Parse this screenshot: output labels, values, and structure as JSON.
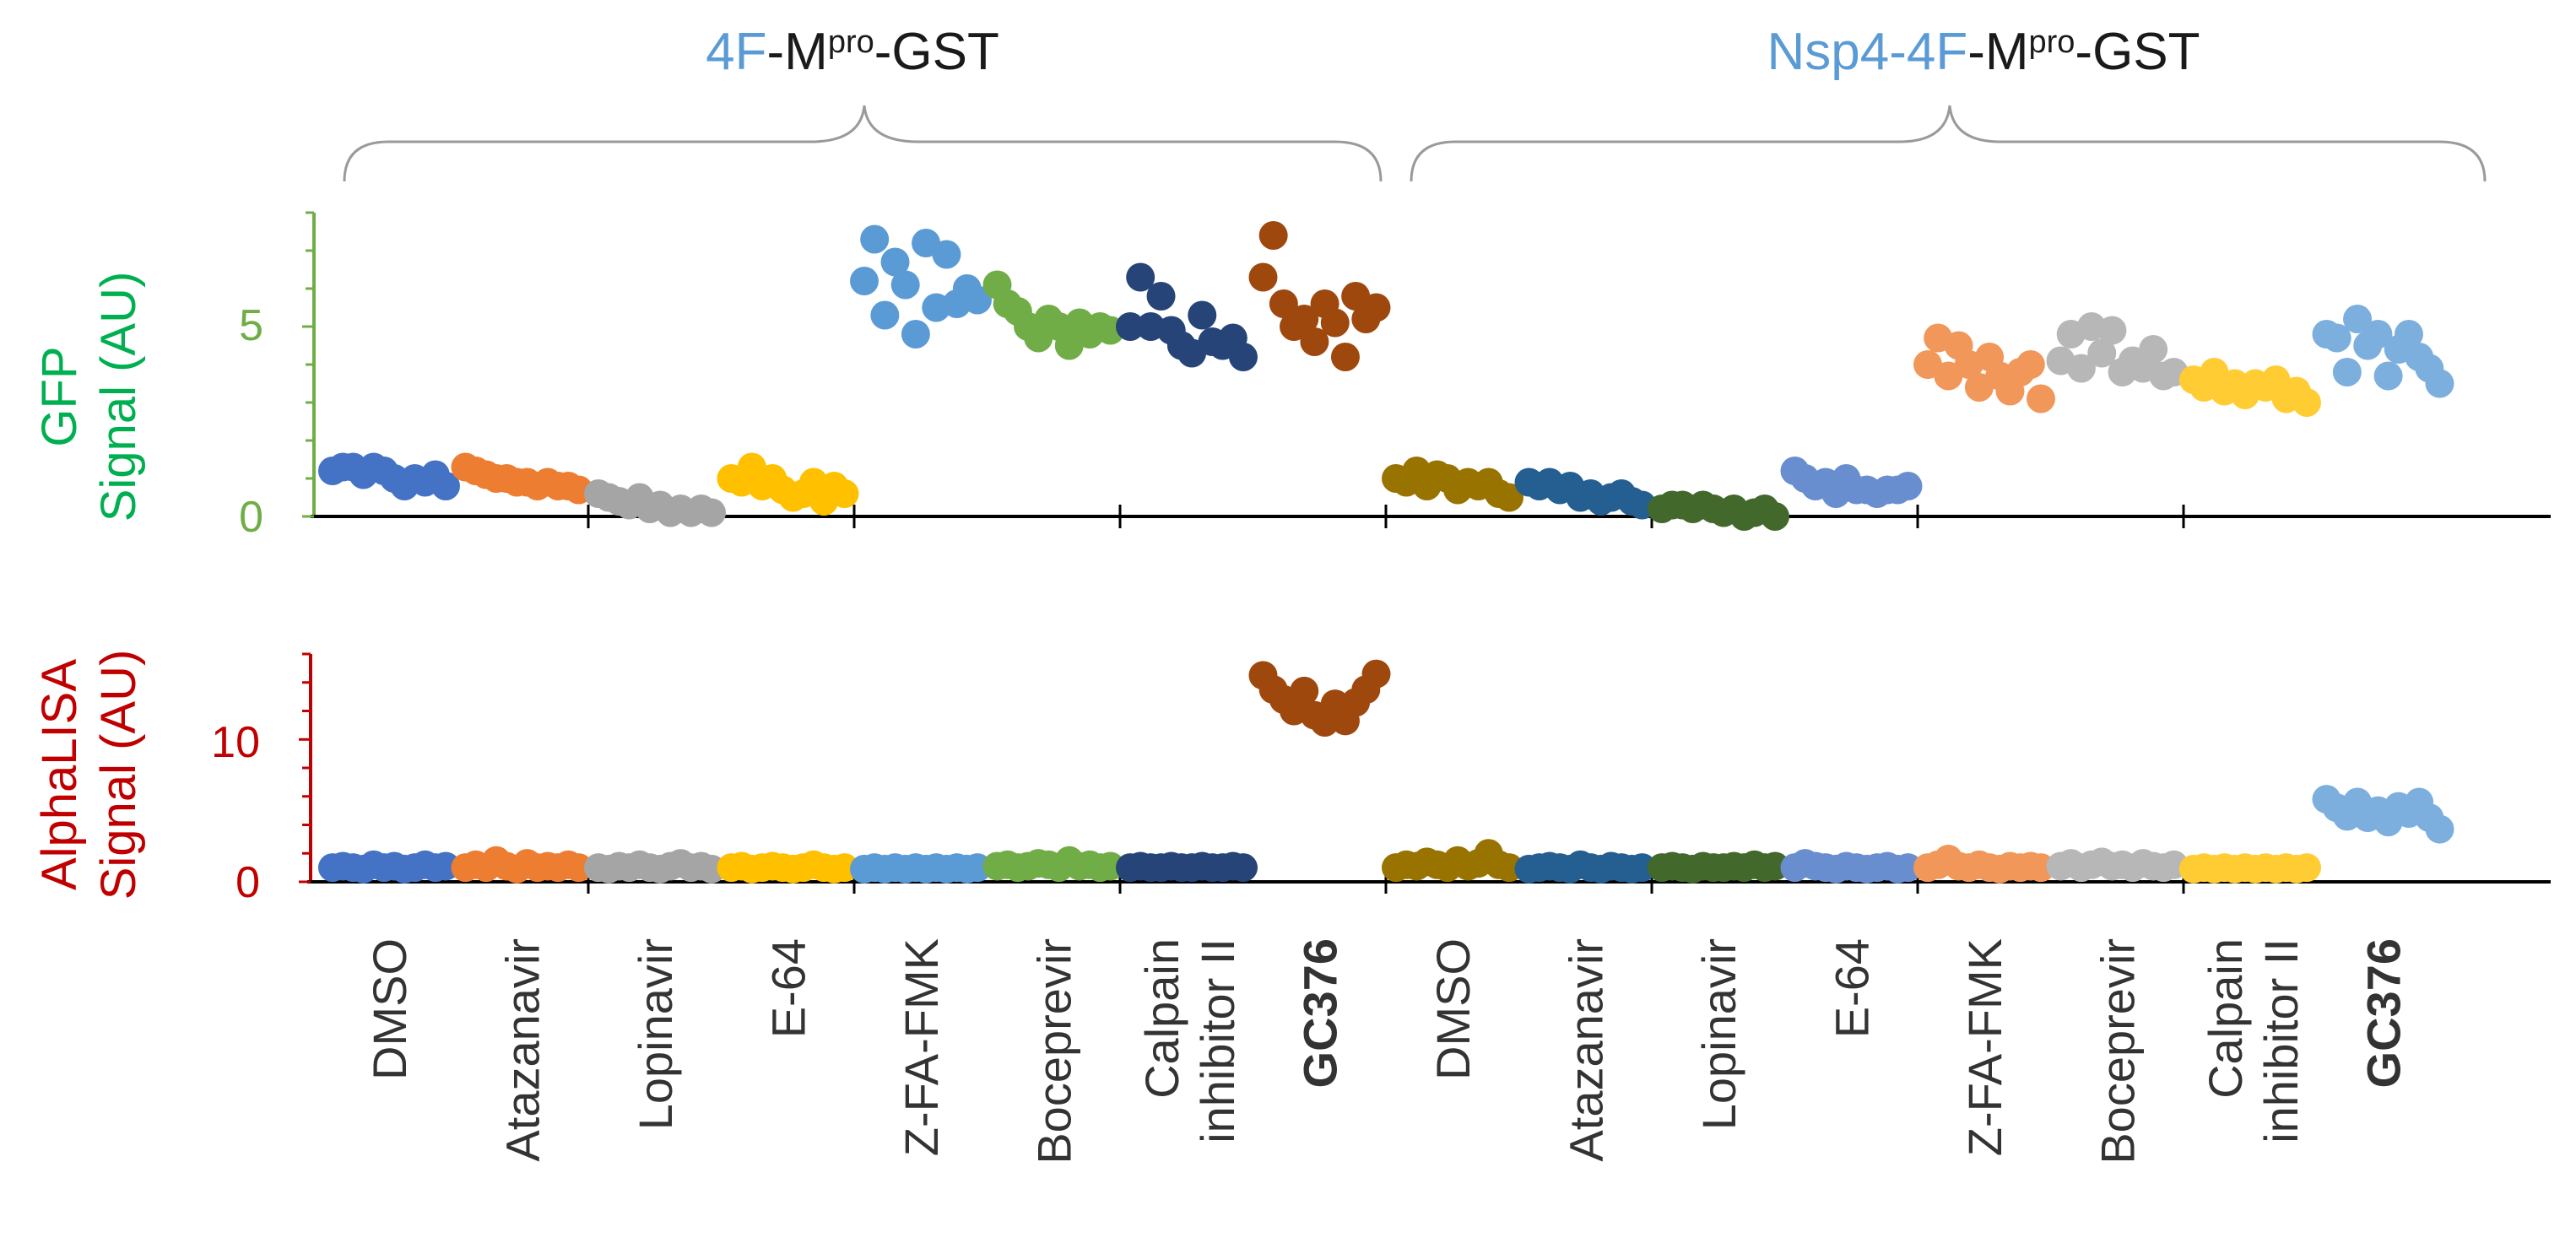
{
  "groups": [
    {
      "name_colored": "4F",
      "name_rest": "-M",
      "sup": "pro",
      "tail": "-GST",
      "colored_color": "#5b9bd5"
    },
    {
      "name_colored": "Nsp4-4F",
      "name_rest": "-M",
      "sup": "pro",
      "tail": "-GST",
      "colored_color": "#5b9bd5"
    }
  ],
  "panels": {
    "gfp": {
      "ylabel_line1": "GFP",
      "ylabel_line2": "Signal (AU)",
      "color": "#70ad47",
      "ticks": [
        "0",
        "5"
      ]
    },
    "alpha": {
      "ylabel_line1": "AlphaLISA",
      "ylabel_line2": "Signal (AU)",
      "color": "#c00000",
      "ticks": [
        "0",
        "10"
      ]
    }
  },
  "compounds": [
    {
      "line1": "DMSO",
      "line2": "",
      "bold": false
    },
    {
      "line1": "Atazanavir",
      "line2": "",
      "bold": false
    },
    {
      "line1": "Lopinavir",
      "line2": "",
      "bold": false
    },
    {
      "line1": "E-64",
      "line2": "",
      "bold": false
    },
    {
      "line1": "Z-FA-FMK",
      "line2": "",
      "bold": false
    },
    {
      "line1": "Boceprevir",
      "line2": "",
      "bold": false
    },
    {
      "line1": "Calpain",
      "line2": "inhibitor II",
      "bold": false
    },
    {
      "line1": "GC376",
      "line2": "",
      "bold": true
    },
    {
      "line1": "DMSO",
      "line2": "",
      "bold": false
    },
    {
      "line1": "Atazanavir",
      "line2": "",
      "bold": false
    },
    {
      "line1": "Lopinavir",
      "line2": "",
      "bold": false
    },
    {
      "line1": "E-64",
      "line2": "",
      "bold": false
    },
    {
      "line1": "Z-FA-FMK",
      "line2": "",
      "bold": false
    },
    {
      "line1": "Boceprevir",
      "line2": "",
      "bold": false
    },
    {
      "line1": "Calpain",
      "line2": "inhibitor II",
      "bold": false
    },
    {
      "line1": "GC376",
      "line2": "",
      "bold": true
    }
  ],
  "chart_data": [
    {
      "type": "scatter",
      "ylabel": "GFP Signal (AU)",
      "ylim": [
        0,
        8
      ],
      "yticks": [
        0,
        5
      ],
      "categories": [
        "DMSO",
        "Atazanavir",
        "Lopinavir",
        "E-64",
        "Z-FA-FMK",
        "Boceprevir",
        "Calpain inhibitor II",
        "GC376",
        "DMSO",
        "Atazanavir",
        "Lopinavir",
        "E-64",
        "Z-FA-FMK",
        "Boceprevir",
        "Calpain inhibitor II",
        "GC376"
      ],
      "series": [
        {
          "color": "#4472c4",
          "values": [
            1.2,
            1.3,
            1.3,
            1.1,
            1.3,
            1.2,
            1.0,
            0.8,
            1.0,
            0.9,
            1.1,
            0.8
          ]
        },
        {
          "color": "#ed7d31",
          "values": [
            1.3,
            1.2,
            1.1,
            1.0,
            1.0,
            0.9,
            0.9,
            0.8,
            0.9,
            0.8,
            0.8,
            0.7
          ]
        },
        {
          "color": "#a5a5a5",
          "values": [
            0.6,
            0.5,
            0.4,
            0.3,
            0.5,
            0.2,
            0.3,
            0.1,
            0.2,
            0.1,
            0.2,
            0.1
          ]
        },
        {
          "color": "#ffc000",
          "values": [
            1.0,
            0.9,
            1.3,
            0.8,
            1.0,
            0.7,
            0.5,
            0.6,
            0.9,
            0.4,
            0.8,
            0.6
          ]
        },
        {
          "color": "#5b9bd5",
          "values": [
            6.2,
            7.3,
            5.3,
            6.7,
            6.1,
            4.8,
            7.2,
            5.5,
            6.9,
            5.6,
            6.0,
            5.7
          ]
        },
        {
          "color": "#70ad47",
          "values": [
            6.1,
            5.6,
            5.4,
            5.0,
            4.7,
            5.2,
            5.0,
            4.5,
            5.1,
            4.8,
            5.0,
            4.9
          ]
        },
        {
          "color": "#264478",
          "values": [
            5.0,
            6.3,
            5.0,
            5.8,
            4.9,
            4.5,
            4.3,
            5.3,
            4.6,
            4.5,
            4.7,
            4.2
          ]
        },
        {
          "color": "#9e480e",
          "values": [
            6.3,
            7.4,
            5.6,
            5.0,
            5.2,
            4.6,
            5.6,
            5.1,
            4.2,
            5.8,
            5.2,
            5.5
          ]
        },
        {
          "color": "#997300",
          "values": [
            1.0,
            0.9,
            1.2,
            0.8,
            1.1,
            1.0,
            0.7,
            0.9,
            0.8,
            0.9,
            0.6,
            0.5
          ]
        },
        {
          "color": "#255e91",
          "values": [
            0.9,
            0.8,
            0.9,
            0.7,
            0.8,
            0.5,
            0.6,
            0.4,
            0.5,
            0.6,
            0.4,
            0.3
          ]
        },
        {
          "color": "#43682b",
          "values": [
            0.2,
            0.3,
            0.3,
            0.2,
            0.3,
            0.2,
            0.1,
            0.2,
            0.0,
            0.1,
            0.2,
            0.0
          ]
        },
        {
          "color": "#698ed0",
          "values": [
            1.2,
            1.0,
            0.8,
            0.9,
            0.6,
            1.0,
            0.7,
            0.7,
            0.6,
            0.7,
            0.7,
            0.8
          ]
        },
        {
          "color": "#f1975a",
          "values": [
            4.0,
            4.7,
            3.7,
            4.5,
            4.0,
            3.4,
            4.2,
            3.7,
            3.3,
            3.8,
            4.0,
            3.1
          ]
        },
        {
          "color": "#b7b7b7",
          "values": [
            4.1,
            4.8,
            3.9,
            5.0,
            4.3,
            4.9,
            3.8,
            4.1,
            3.9,
            4.4,
            3.7,
            3.8
          ]
        },
        {
          "color": "#ffcd33",
          "values": [
            3.6,
            3.4,
            3.8,
            3.3,
            3.5,
            3.2,
            3.5,
            3.4,
            3.6,
            3.1,
            3.3,
            3.0
          ]
        },
        {
          "color": "#7cafdd",
          "values": [
            4.8,
            4.7,
            3.8,
            5.2,
            4.5,
            4.8,
            3.7,
            4.4,
            4.8,
            4.2,
            3.9,
            3.5
          ]
        }
      ]
    },
    {
      "type": "scatter",
      "ylabel": "AlphaLISA Signal (AU)",
      "ylim": [
        0,
        16
      ],
      "yticks": [
        0,
        10
      ],
      "categories": [
        "DMSO",
        "Atazanavir",
        "Lopinavir",
        "E-64",
        "Z-FA-FMK",
        "Boceprevir",
        "Calpain inhibitor II",
        "GC376",
        "DMSO",
        "Atazanavir",
        "Lopinavir",
        "E-64",
        "Z-FA-FMK",
        "Boceprevir",
        "Calpain inhibitor II",
        "GC376"
      ],
      "series": [
        {
          "color": "#4472c4",
          "values": [
            1.0,
            1.1,
            1.0,
            0.9,
            1.2,
            1.0,
            1.1,
            0.9,
            1.0,
            1.2,
            1.0,
            1.1
          ]
        },
        {
          "color": "#ed7d31",
          "values": [
            1.0,
            1.2,
            1.0,
            1.5,
            1.1,
            0.9,
            1.3,
            1.0,
            1.1,
            1.0,
            1.2,
            1.0
          ]
        },
        {
          "color": "#a5a5a5",
          "values": [
            1.0,
            0.9,
            1.1,
            1.0,
            1.2,
            1.0,
            0.9,
            1.1,
            1.3,
            1.0,
            1.1,
            0.9
          ]
        },
        {
          "color": "#ffc000",
          "values": [
            1.0,
            1.1,
            0.9,
            1.0,
            1.1,
            1.0,
            0.9,
            1.0,
            1.2,
            1.0,
            0.9,
            1.0
          ]
        },
        {
          "color": "#5b9bd5",
          "values": [
            0.9,
            1.0,
            0.9,
            1.0,
            0.9,
            1.0,
            0.9,
            1.0,
            0.9,
            1.0,
            0.9,
            1.0
          ]
        },
        {
          "color": "#70ad47",
          "values": [
            1.1,
            1.2,
            1.0,
            1.1,
            1.3,
            1.2,
            1.0,
            1.5,
            1.1,
            1.2,
            1.0,
            1.1
          ]
        },
        {
          "color": "#264478",
          "values": [
            1.0,
            1.1,
            1.0,
            1.0,
            1.1,
            1.0,
            1.0,
            1.1,
            1.0,
            1.0,
            1.1,
            1.0
          ]
        },
        {
          "color": "#9e480e",
          "values": [
            14.5,
            13.5,
            12.8,
            12.0,
            13.4,
            11.7,
            11.2,
            12.5,
            11.3,
            12.6,
            13.5,
            14.6
          ]
        },
        {
          "color": "#997300",
          "values": [
            1.0,
            1.2,
            1.1,
            1.4,
            1.2,
            1.0,
            1.5,
            1.1,
            1.3,
            2.0,
            1.2,
            1.0
          ]
        },
        {
          "color": "#255e91",
          "values": [
            0.9,
            1.0,
            1.1,
            1.0,
            0.9,
            1.2,
            1.0,
            0.9,
            1.1,
            1.0,
            0.9,
            1.0
          ]
        },
        {
          "color": "#43682b",
          "values": [
            1.0,
            1.1,
            1.0,
            0.9,
            1.1,
            1.0,
            1.0,
            1.1,
            1.0,
            1.2,
            1.0,
            1.1
          ]
        },
        {
          "color": "#698ed0",
          "values": [
            1.0,
            1.3,
            1.1,
            1.0,
            0.9,
            1.1,
            1.0,
            0.9,
            1.0,
            1.1,
            0.9,
            1.0
          ]
        },
        {
          "color": "#f1975a",
          "values": [
            1.0,
            1.2,
            1.6,
            1.1,
            1.0,
            1.2,
            1.0,
            0.9,
            1.1,
            1.0,
            1.1,
            1.0
          ]
        },
        {
          "color": "#b7b7b7",
          "values": [
            1.1,
            1.3,
            1.0,
            1.2,
            1.4,
            1.1,
            1.2,
            1.0,
            1.3,
            1.1,
            1.0,
            1.2
          ]
        },
        {
          "color": "#ffcd33",
          "values": [
            0.9,
            1.0,
            0.9,
            1.0,
            0.9,
            1.0,
            0.9,
            1.0,
            0.9,
            1.0,
            0.9,
            1.0
          ]
        },
        {
          "color": "#7cafdd",
          "values": [
            5.8,
            5.2,
            4.6,
            5.6,
            4.5,
            5.0,
            4.2,
            5.3,
            4.8,
            5.6,
            4.5,
            3.7
          ]
        }
      ]
    }
  ]
}
